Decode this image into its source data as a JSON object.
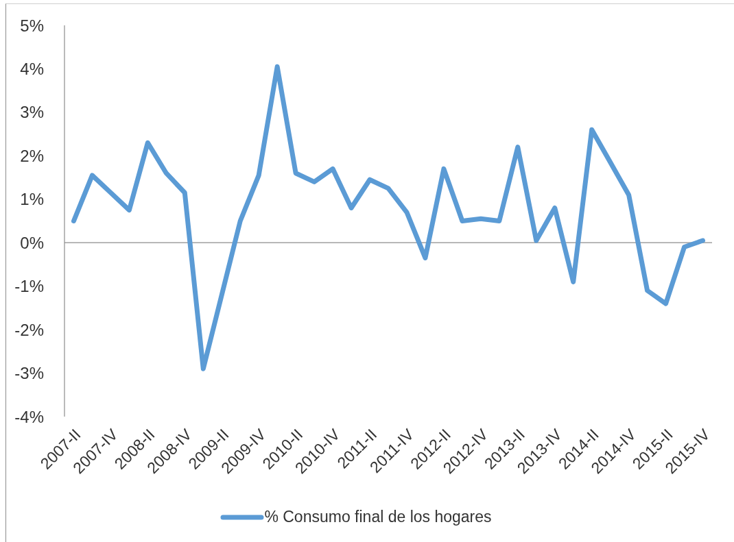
{
  "chart_data": {
    "type": "line",
    "categories": [
      "2007-II",
      null,
      "2007-IV",
      null,
      "2008-II",
      null,
      "2008-IV",
      null,
      "2009-II",
      null,
      "2009-IV",
      null,
      "2010-II",
      null,
      "2010-IV",
      null,
      "2011-II",
      null,
      "2011-IV",
      null,
      "2012-II",
      null,
      "2012-IV",
      null,
      "2013-II",
      null,
      "2013-IV",
      null,
      "2014-II",
      null,
      "2014-IV",
      null,
      "2015-II",
      null,
      "2015-IV"
    ],
    "series": [
      {
        "name": "% Consumo final de los hogares",
        "color": "#5b9bd5",
        "values": [
          0.5,
          1.55,
          1.15,
          0.75,
          2.3,
          1.6,
          1.15,
          -2.9,
          -1.2,
          0.5,
          1.55,
          4.05,
          1.6,
          1.4,
          1.7,
          0.8,
          1.45,
          1.25,
          0.7,
          -0.35,
          1.7,
          0.5,
          0.55,
          0.5,
          2.2,
          0.05,
          0.8,
          -0.9,
          2.6,
          1.85,
          1.1,
          -1.1,
          -1.4,
          -0.1,
          0.05
        ]
      }
    ],
    "ylim": [
      -4,
      5
    ],
    "yticks": [
      {
        "value": -4,
        "label": "-4%"
      },
      {
        "value": -3,
        "label": "-3%"
      },
      {
        "value": -2,
        "label": "-2%"
      },
      {
        "value": -1,
        "label": "-1%"
      },
      {
        "value": 0,
        "label": "0%"
      },
      {
        "value": 1,
        "label": "1%"
      },
      {
        "value": 2,
        "label": "2%"
      },
      {
        "value": 3,
        "label": "3%"
      },
      {
        "value": 4,
        "label": "4%"
      },
      {
        "value": 5,
        "label": "5%"
      }
    ],
    "legend": "bottom",
    "line_style": "solid"
  }
}
